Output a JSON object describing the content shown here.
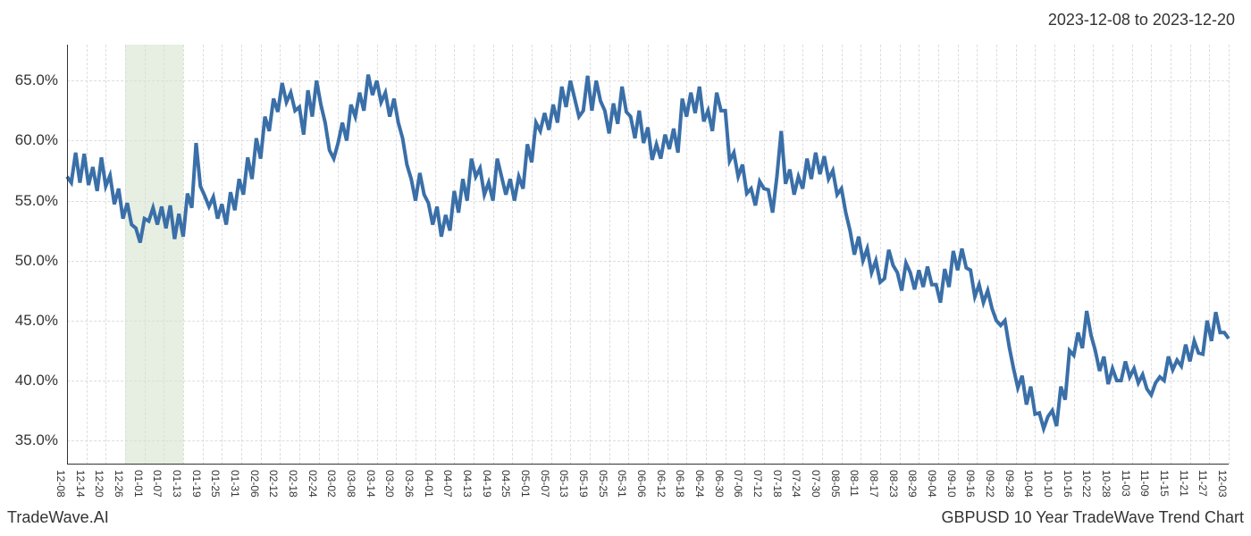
{
  "date_range_label": "2023-12-08 to 2023-12-20",
  "footer_left": "TradeWave.AI",
  "footer_right": "GBPUSD 10 Year TradeWave Trend Chart",
  "chart": {
    "type": "line",
    "line_color": "#3a6fa8",
    "line_width": 2,
    "background_color": "#ffffff",
    "grid_color": "#dddddd",
    "axis_color": "#333333",
    "text_color": "#333333",
    "highlight_color": "#dce8d4",
    "highlight_start_index": 3,
    "highlight_end_index": 6,
    "y_axis": {
      "min": 33,
      "max": 68,
      "ticks": [
        35,
        40,
        45,
        50,
        55,
        60,
        65
      ],
      "suffix": ".0%",
      "label_fontsize": 17
    },
    "x_axis": {
      "labels": [
        "12-08",
        "12-14",
        "12-20",
        "12-26",
        "01-01",
        "01-07",
        "01-13",
        "01-19",
        "01-25",
        "01-31",
        "02-06",
        "02-12",
        "02-18",
        "02-24",
        "03-02",
        "03-08",
        "03-14",
        "03-20",
        "03-26",
        "04-01",
        "04-07",
        "04-13",
        "04-19",
        "04-25",
        "05-01",
        "05-07",
        "05-13",
        "05-19",
        "05-25",
        "05-31",
        "06-06",
        "06-12",
        "06-18",
        "06-24",
        "06-30",
        "07-06",
        "07-12",
        "07-18",
        "07-24",
        "07-30",
        "08-05",
        "08-11",
        "08-17",
        "08-23",
        "08-29",
        "09-04",
        "09-10",
        "09-16",
        "09-22",
        "09-28",
        "10-04",
        "10-10",
        "10-16",
        "10-22",
        "10-28",
        "11-03",
        "11-09",
        "11-15",
        "11-21",
        "11-27",
        "12-03"
      ],
      "label_fontsize": 12
    },
    "values": [
      57.0,
      56.5,
      59.0,
      56.5,
      58.9,
      56.3,
      57.8,
      55.8,
      58.6,
      56.2,
      57.1,
      54.7,
      56.0,
      53.5,
      54.8,
      53.0,
      52.7,
      51.5,
      53.5,
      53.3,
      54.4,
      53.0,
      54.5,
      52.7,
      54.6,
      51.8,
      53.9,
      52.0,
      55.6,
      54.4,
      59.8,
      56.2,
      55.4,
      54.5,
      55.3,
      53.5,
      54.7,
      53.0,
      55.7,
      54.2,
      56.8,
      55.5,
      58.6,
      56.8,
      60.2,
      58.5,
      62.0,
      60.8,
      63.5,
      62.4,
      64.8,
      63.2,
      64.0,
      62.5,
      62.8,
      60.5,
      64.2,
      62.0,
      65.0,
      63.0,
      61.5,
      59.2,
      58.5,
      59.8,
      61.5,
      60.0,
      63.0,
      62.0,
      64.0,
      62.5,
      65.5,
      63.8,
      65.0,
      63.2,
      64.0,
      62.0,
      63.5,
      61.5,
      60.2,
      58.0,
      56.8,
      55.0,
      57.3,
      55.5,
      54.8,
      53.0,
      54.5,
      52.0,
      53.8,
      52.5,
      55.8,
      54.0,
      56.8,
      55.0,
      58.5,
      57.0,
      57.7,
      55.5,
      56.5,
      55.0,
      58.5,
      57.0,
      55.5,
      56.8,
      55.0,
      57.0,
      56.0,
      59.7,
      58.2,
      61.5,
      60.8,
      62.3,
      60.9,
      63.0,
      61.5,
      64.5,
      62.8,
      65.0,
      63.5,
      62.0,
      62.5,
      65.4,
      62.5,
      65.0,
      63.3,
      62.5,
      60.6,
      63.1,
      61.4,
      64.5,
      62.4,
      62.0,
      60.2,
      62.5,
      59.8,
      61.1,
      58.4,
      59.7,
      58.5,
      60.5,
      59.3,
      61.0,
      59.0,
      63.5,
      62.0,
      64.0,
      62.3,
      64.5,
      61.6,
      62.5,
      60.8,
      64.0,
      62.5,
      62.5,
      58.3,
      59.0,
      57.0,
      58.0,
      55.6,
      56.0,
      54.6,
      56.6,
      56.0,
      55.9,
      54.0,
      57.0,
      60.8,
      56.4,
      57.6,
      55.5,
      57.0,
      56.0,
      58.5,
      56.8,
      59.0,
      57.2,
      58.7,
      56.8,
      57.5,
      55.5,
      56.0,
      54.0,
      52.5,
      50.5,
      52.0,
      50.0,
      51.0,
      49.0,
      50.0,
      48.2,
      48.5,
      50.9,
      49.6,
      49.0,
      47.5,
      49.8,
      49.0,
      47.6,
      49.2,
      47.8,
      49.5,
      48.0,
      48.0,
      46.5,
      49.3,
      47.8,
      50.8,
      49.2,
      51.0,
      49.4,
      49.2,
      47.0,
      48.0,
      46.5,
      47.5,
      46.0,
      45.0,
      44.6,
      45.0,
      42.8,
      41.0,
      39.4,
      40.4,
      38.0,
      39.5,
      37.2,
      37.3,
      36.0,
      37.0,
      37.5,
      36.2,
      39.5,
      38.4,
      42.5,
      42.1,
      44.0,
      42.7,
      45.8,
      43.8,
      42.5,
      40.8,
      42.0,
      39.7,
      41.0,
      40.0,
      40.0,
      41.6,
      40.3,
      41.0,
      39.8,
      40.5,
      39.3,
      38.8,
      39.8,
      40.3,
      40.0,
      42.0,
      40.9,
      41.7,
      41.2,
      43.0,
      41.6,
      43.3,
      42.3,
      42.2,
      45.0,
      43.3,
      45.7,
      44.0,
      44.0,
      43.5
    ]
  }
}
